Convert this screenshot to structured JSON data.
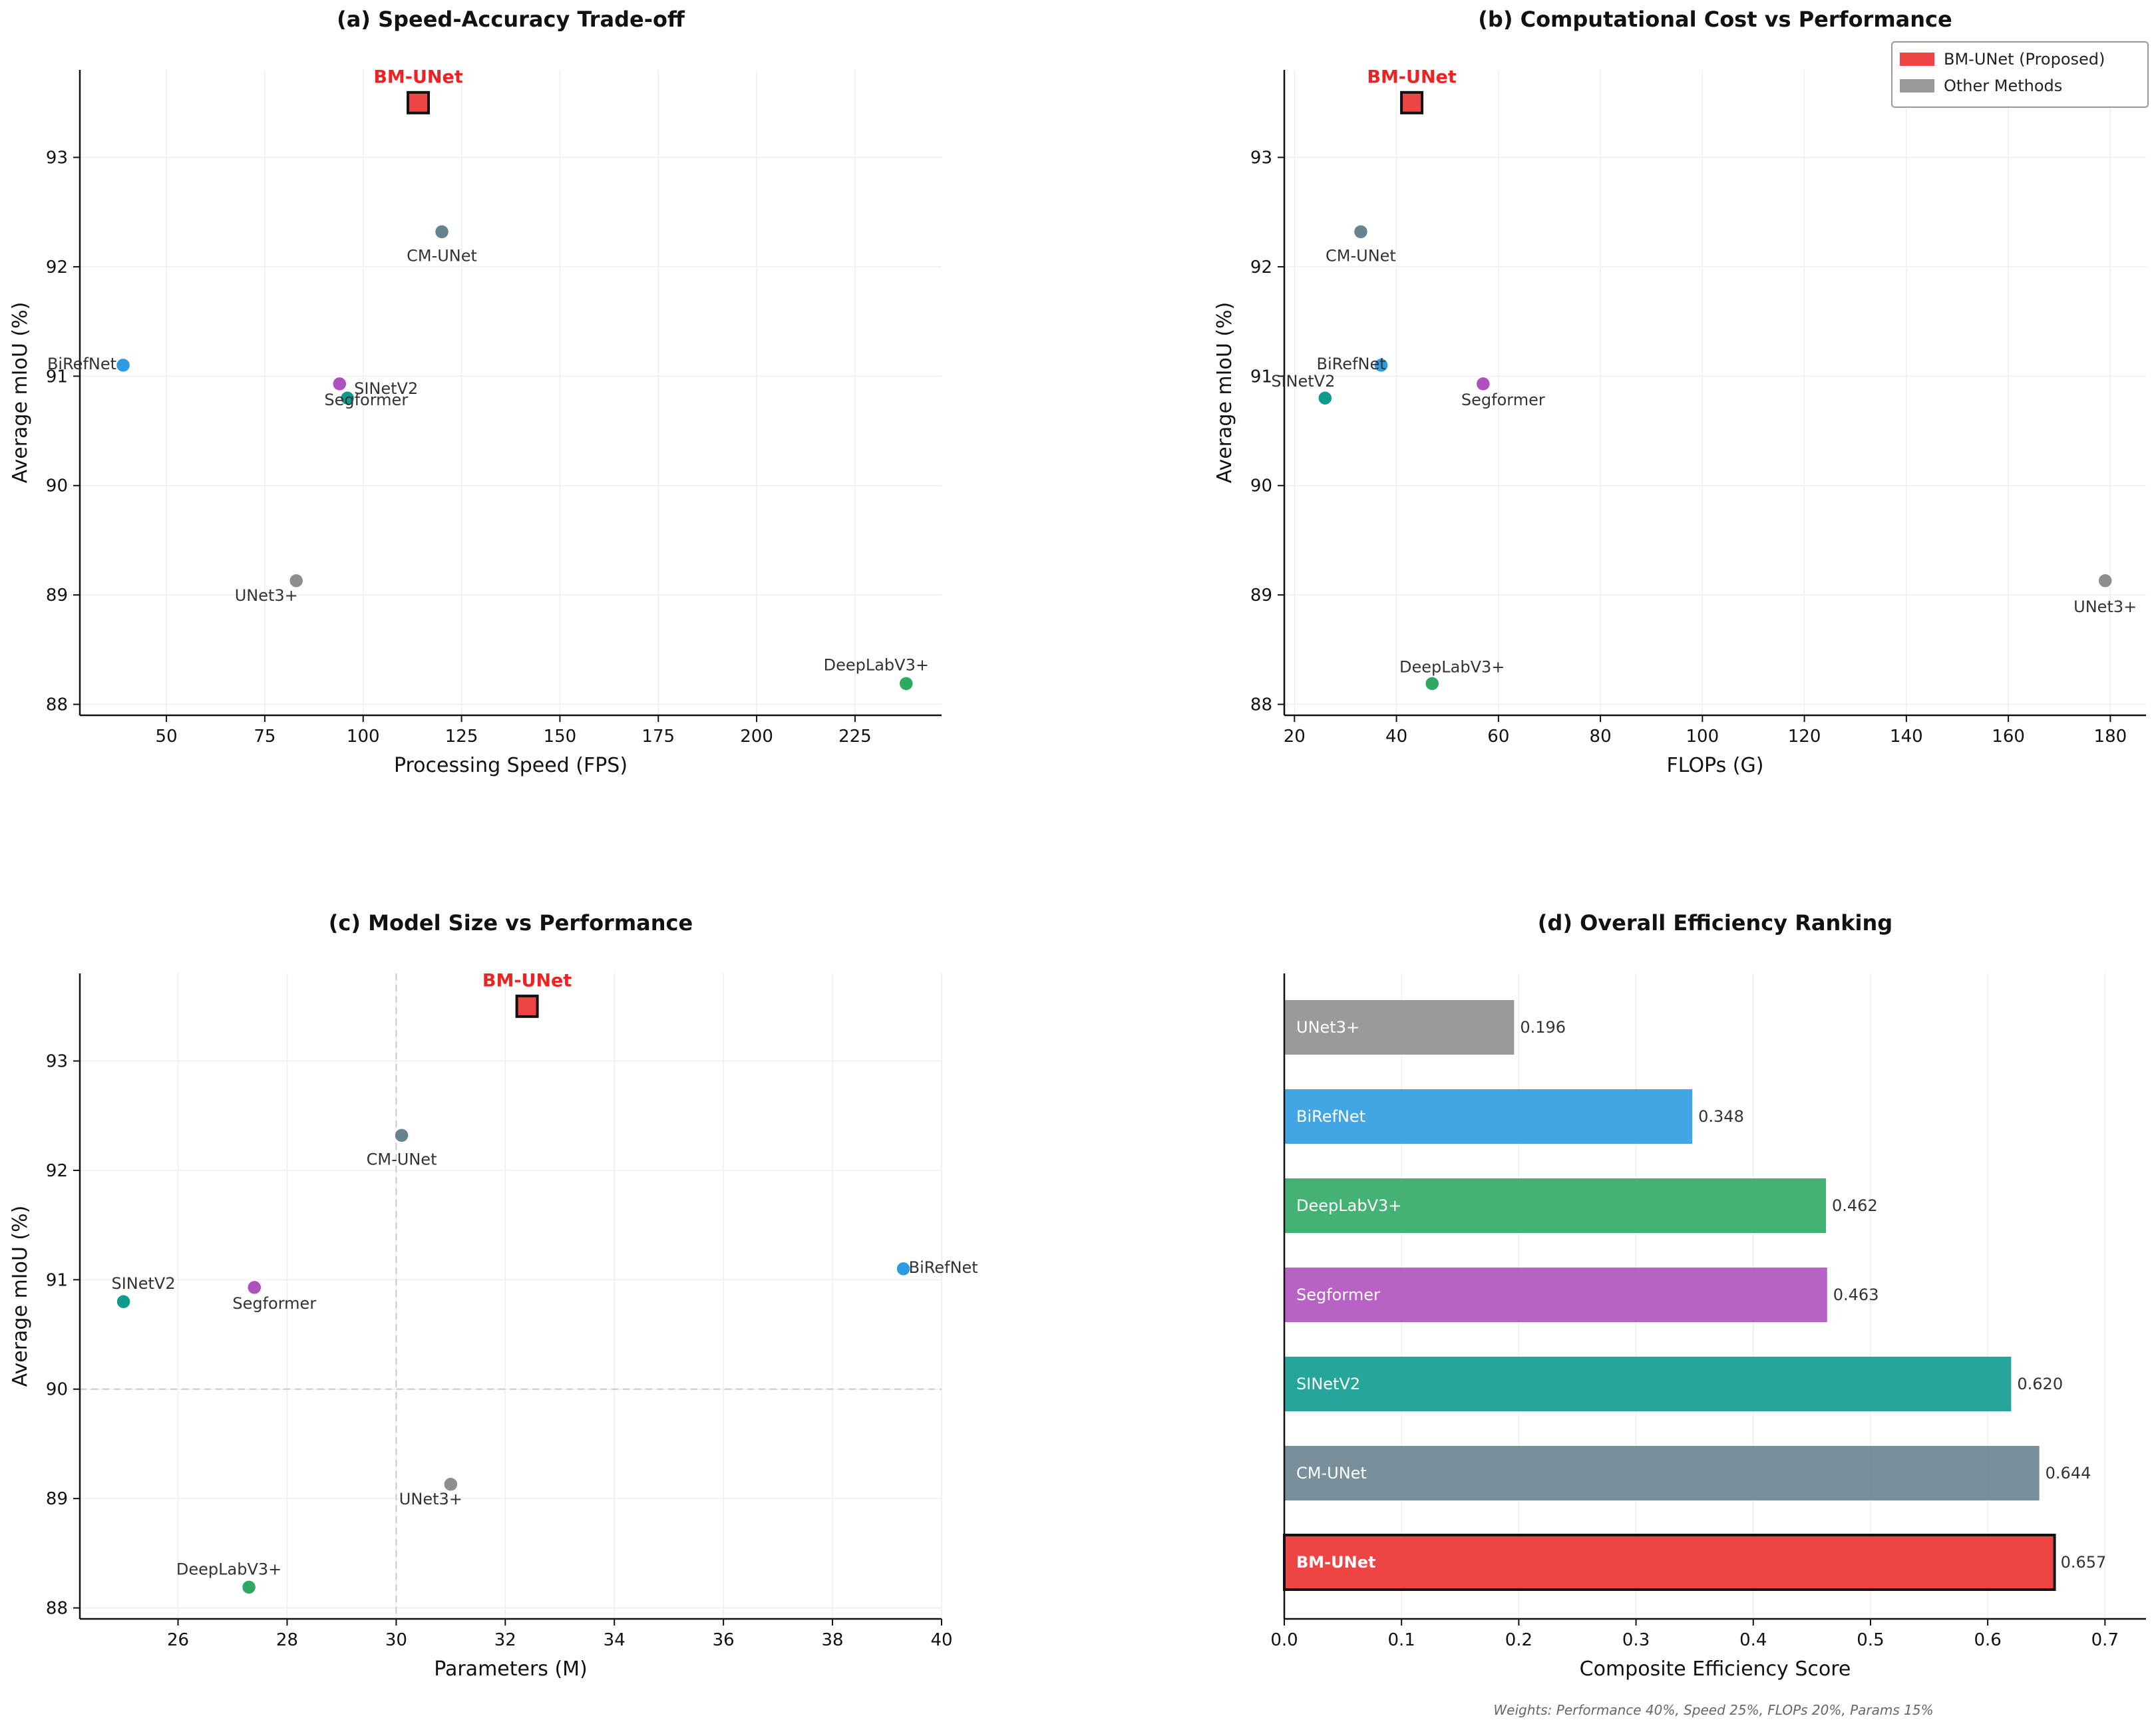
{
  "colors": {
    "BM-UNet": "#ef4444",
    "CM-UNet": "#607d8b",
    "BiRefNet": "#2196e0",
    "SINetV2": "#009688",
    "Segformer": "#ab47bc",
    "UNet3+": "#888888",
    "DeepLabV3+": "#23a55a",
    "accent": "#ef2222"
  },
  "footnote": "Weights: Performance 40%, Speed 25%, FLOPs 20%, Params 15%",
  "chart_data": [
    {
      "id": "a",
      "type": "scatter",
      "title": "(a) Speed-Accuracy Trade-off",
      "xlabel": "Processing Speed (FPS)",
      "ylabel": "Average mIoU (%)",
      "xlim": [
        28,
        247
      ],
      "ylim": [
        87.9,
        93.8
      ],
      "xticks": [
        50,
        75,
        100,
        125,
        150,
        175,
        200,
        225
      ],
      "yticks": [
        88,
        89,
        90,
        91,
        92,
        93
      ],
      "grid": true,
      "proposed": {
        "name": "BM-UNet",
        "x": 114,
        "y": 93.5
      },
      "points": [
        {
          "name": "CM-UNet",
          "x": 120,
          "y": 92.32
        },
        {
          "name": "BiRefNet",
          "x": 39,
          "y": 91.1
        },
        {
          "name": "SINetV2",
          "x": 96,
          "y": 90.8
        },
        {
          "name": "Segformer",
          "x": 94,
          "y": 90.93
        },
        {
          "name": "UNet3+",
          "x": 83,
          "y": 89.13
        },
        {
          "name": "DeepLabV3+",
          "x": 238,
          "y": 88.19
        }
      ]
    },
    {
      "id": "b",
      "type": "scatter",
      "title": "(b) Computational Cost vs Performance",
      "xlabel": "FLOPs (G)",
      "ylabel": "Average mIoU (%)",
      "xlim": [
        18,
        187
      ],
      "ylim": [
        87.9,
        93.8
      ],
      "xticks": [
        20,
        40,
        60,
        80,
        100,
        120,
        140,
        160,
        180
      ],
      "yticks": [
        88,
        89,
        90,
        91,
        92,
        93
      ],
      "grid": true,
      "legend": {
        "placement": "top-right",
        "entries": [
          "BM-UNet (Proposed)",
          "Other Methods"
        ]
      },
      "proposed": {
        "name": "BM-UNet",
        "x": 43,
        "y": 93.5
      },
      "points": [
        {
          "name": "CM-UNet",
          "x": 33,
          "y": 92.32
        },
        {
          "name": "BiRefNet",
          "x": 37,
          "y": 91.1
        },
        {
          "name": "SINetV2",
          "x": 26,
          "y": 90.8
        },
        {
          "name": "Segformer",
          "x": 57,
          "y": 90.93
        },
        {
          "name": "UNet3+",
          "x": 179,
          "y": 89.13
        },
        {
          "name": "DeepLabV3+",
          "x": 47,
          "y": 88.19
        }
      ]
    },
    {
      "id": "c",
      "type": "scatter",
      "title": "(c) Model Size vs Performance",
      "xlabel": "Parameters (M)",
      "ylabel": "Average mIoU (%)",
      "xlim": [
        24.2,
        40
      ],
      "ylim": [
        87.9,
        93.8
      ],
      "xticks": [
        26,
        28,
        30,
        32,
        34,
        36,
        38,
        40
      ],
      "yticks": [
        88,
        89,
        90,
        91,
        92,
        93
      ],
      "grid": true,
      "reference_lines": {
        "x": 30,
        "y": 90
      },
      "proposed": {
        "name": "BM-UNet",
        "x": 32.4,
        "y": 93.5
      },
      "points": [
        {
          "name": "CM-UNet",
          "x": 30.1,
          "y": 92.32
        },
        {
          "name": "BiRefNet",
          "x": 39.3,
          "y": 91.1
        },
        {
          "name": "SINetV2",
          "x": 25.0,
          "y": 90.8
        },
        {
          "name": "Segformer",
          "x": 27.4,
          "y": 90.93
        },
        {
          "name": "UNet3+",
          "x": 31.0,
          "y": 89.13
        },
        {
          "name": "DeepLabV3+",
          "x": 27.3,
          "y": 88.19
        }
      ]
    },
    {
      "id": "d",
      "type": "bar",
      "orientation": "horizontal",
      "title": "(d) Overall Efficiency Ranking",
      "xlabel": "Composite Efficiency Score",
      "xlim": [
        0,
        0.735
      ],
      "xticks": [
        "0.0",
        "0.1",
        "0.2",
        "0.3",
        "0.4",
        "0.5",
        "0.6",
        "0.7"
      ],
      "grid": true,
      "bars": [
        {
          "name": "UNet3+",
          "value": 0.196,
          "label": "0.196"
        },
        {
          "name": "BiRefNet",
          "value": 0.348,
          "label": "0.348"
        },
        {
          "name": "DeepLabV3+",
          "value": 0.462,
          "label": "0.462"
        },
        {
          "name": "Segformer",
          "value": 0.463,
          "label": "0.463"
        },
        {
          "name": "SINetV2",
          "value": 0.62,
          "label": "0.620"
        },
        {
          "name": "CM-UNet",
          "value": 0.644,
          "label": "0.644"
        },
        {
          "name": "BM-UNet",
          "value": 0.657,
          "label": "0.657"
        }
      ]
    }
  ]
}
